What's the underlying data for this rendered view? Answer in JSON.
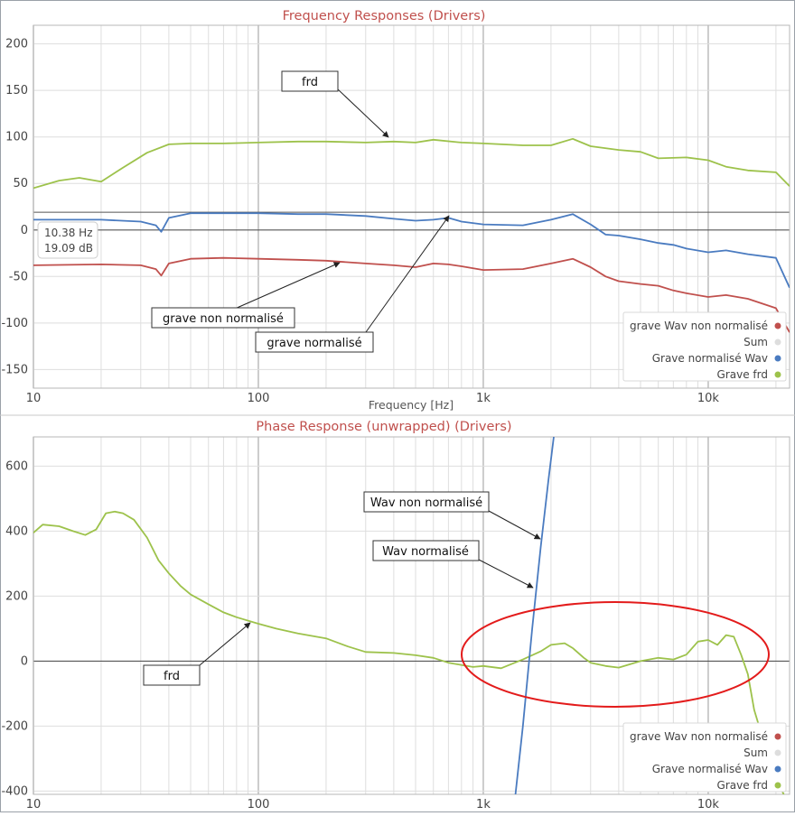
{
  "colors": {
    "red_series": "#c0504d",
    "blue_series": "#4a7bc0",
    "green_series": "#9dc24b",
    "sum_series": "#dddddd",
    "title": "#c0504d",
    "highlight_ellipse": "#e31b1b"
  },
  "chart_data": [
    {
      "type": "line",
      "title": "Frequency Responses (Drivers)",
      "xlabel": "Frequency [Hz]",
      "ylabel": "",
      "xscale": "log",
      "xlim": [
        10,
        23000
      ],
      "ylim": [
        -170,
        220
      ],
      "x_tick_labels": [
        "10",
        "100",
        "1k",
        "10k"
      ],
      "y_tick_labels": [
        "200",
        "150",
        "100",
        "50",
        "0",
        "-50",
        "-100",
        "-150"
      ],
      "legend_position": "bottom-right",
      "legend": [
        {
          "label": "grave Wav non normalisé",
          "color": "#c0504d"
        },
        {
          "label": "Sum",
          "color": "#dddddd"
        },
        {
          "label": "Grave normalisé Wav",
          "color": "#4a7bc0"
        },
        {
          "label": "Grave frd",
          "color": "#9dc24b"
        }
      ],
      "series": [
        {
          "name": "Grave frd",
          "color": "#9dc24b",
          "x": [
            10,
            13,
            16,
            20,
            25,
            32,
            40,
            50,
            70,
            100,
            150,
            200,
            300,
            400,
            500,
            600,
            800,
            1000,
            1500,
            2000,
            2500,
            3000,
            4000,
            5000,
            6000,
            8000,
            10000,
            12000,
            15000,
            20000,
            23000
          ],
          "y": [
            45,
            53,
            56,
            52,
            67,
            83,
            92,
            93,
            93,
            94,
            95,
            95,
            94,
            95,
            94,
            97,
            94,
            93,
            91,
            91,
            98,
            90,
            86,
            84,
            77,
            78,
            75,
            68,
            64,
            62,
            47
          ]
        },
        {
          "name": "Grave normalisé Wav",
          "color": "#4a7bc0",
          "x": [
            10,
            20,
            30,
            35,
            37,
            40,
            50,
            70,
            100,
            150,
            200,
            300,
            400,
            500,
            600,
            700,
            800,
            1000,
            1500,
            2000,
            2500,
            3000,
            3500,
            4000,
            5000,
            6000,
            7000,
            8000,
            10000,
            12000,
            15000,
            20000,
            23000
          ],
          "y": [
            11,
            11,
            9,
            5,
            -2,
            13,
            18,
            18,
            18,
            17,
            17,
            15,
            12,
            10,
            11,
            13,
            9,
            6,
            5,
            11,
            17,
            6,
            -5,
            -6,
            -10,
            -14,
            -16,
            -20,
            -24,
            -22,
            -26,
            -30,
            -62
          ]
        },
        {
          "name": "grave Wav non normalisé",
          "color": "#c0504d",
          "x": [
            10,
            20,
            30,
            35,
            37,
            40,
            50,
            70,
            100,
            150,
            200,
            300,
            400,
            500,
            600,
            700,
            800,
            1000,
            1500,
            2000,
            2500,
            3000,
            3500,
            4000,
            5000,
            6000,
            7000,
            8000,
            10000,
            12000,
            15000,
            20000,
            23000
          ],
          "y": [
            -38,
            -37,
            -38,
            -42,
            -49,
            -36,
            -31,
            -30,
            -31,
            -32,
            -33,
            -36,
            -38,
            -40,
            -36,
            -37,
            -39,
            -43,
            -42,
            -36,
            -31,
            -40,
            -50,
            -55,
            -58,
            -60,
            -65,
            -68,
            -72,
            -70,
            -74,
            -84,
            -110
          ]
        }
      ],
      "tooltip": {
        "line1": "10.38 Hz",
        "line2": "19.09 dB"
      },
      "annotations": [
        "frd",
        "grave non normalisé",
        "grave normalisé"
      ]
    },
    {
      "type": "line",
      "title": "Phase Response (unwrapped) (Drivers)",
      "xlabel": "",
      "ylabel": "",
      "xscale": "log",
      "xlim": [
        10,
        23000
      ],
      "ylim": [
        -410,
        690
      ],
      "x_tick_labels": [
        "10",
        "100",
        "1k",
        "10k"
      ],
      "y_tick_labels": [
        "600",
        "400",
        "200",
        "0",
        "-200",
        "-400"
      ],
      "legend_position": "bottom-right",
      "legend": [
        {
          "label": "grave Wav non normalisé",
          "color": "#c0504d"
        },
        {
          "label": "Sum",
          "color": "#dddddd"
        },
        {
          "label": "Grave normalisé Wav",
          "color": "#4a7bc0"
        },
        {
          "label": "Grave frd",
          "color": "#9dc24b"
        }
      ],
      "series": [
        {
          "name": "Grave frd",
          "color": "#9dc24b",
          "x": [
            10,
            11,
            13,
            15,
            17,
            19,
            21,
            23,
            25,
            28,
            32,
            36,
            40,
            45,
            50,
            60,
            70,
            80,
            100,
            120,
            150,
            200,
            250,
            300,
            400,
            500,
            600,
            700,
            800,
            900,
            1000,
            1200,
            1500,
            1800,
            2000,
            2300,
            2500,
            2800,
            3000,
            3500,
            4000,
            5000,
            6000,
            7000,
            8000,
            9000,
            10000,
            11000,
            12000,
            13000,
            14000,
            15000,
            16000,
            17000,
            20000,
            22000
          ],
          "y": [
            395,
            420,
            415,
            400,
            388,
            405,
            455,
            460,
            455,
            435,
            380,
            310,
            270,
            232,
            205,
            175,
            150,
            135,
            115,
            100,
            85,
            70,
            45,
            28,
            25,
            18,
            10,
            -5,
            -12,
            -18,
            -15,
            -22,
            5,
            30,
            50,
            55,
            40,
            10,
            -5,
            -15,
            -20,
            0,
            10,
            5,
            20,
            60,
            65,
            50,
            80,
            75,
            20,
            -40,
            -150,
            -210,
            -360,
            -420
          ]
        },
        {
          "name": "Grave normalisé Wav",
          "color": "#4a7bc0",
          "x": [
            1380,
            1500,
            1650,
            1800,
            1950,
            2100
          ],
          "y": [
            -430,
            -200,
            100,
            350,
            560,
            740
          ]
        }
      ],
      "annotations": [
        "Wav non normalisé",
        "Wav normalisé",
        "frd"
      ],
      "highlight": "ellipse"
    }
  ]
}
